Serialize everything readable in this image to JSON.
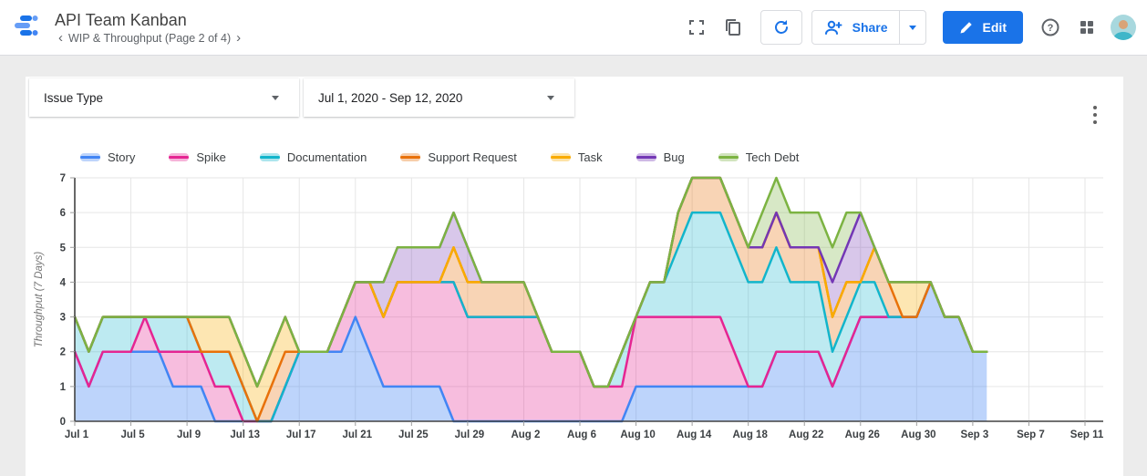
{
  "header": {
    "title": "API Team Kanban",
    "page_nav": "WIP & Throughput (Page 2 of 4)",
    "prev_page": "‹",
    "next_page": "›",
    "share_label": "Share",
    "edit_label": "Edit"
  },
  "filters": {
    "issue_type_label": "Issue Type",
    "date_range_value": "Jul 1, 2020 - Sep 12, 2020"
  },
  "colors": {
    "accent_blue": "#1a73e8",
    "icon_gray": "#5f6368",
    "axis_text": "#3c4043",
    "grid_line": "#e6e6e6",
    "axis_line": "#424242",
    "page_background": "#ececec",
    "canvas_background": "#ffffff"
  },
  "chart_data": {
    "type": "area",
    "stacked": true,
    "ylabel": "Throughput (7 Days)",
    "ylim": [
      0,
      7
    ],
    "y_ticks": [
      0,
      1,
      2,
      3,
      4,
      5,
      6,
      7
    ],
    "grid": true,
    "legend_position": "top",
    "n_points": 66,
    "x_start_label": "Jul 1",
    "x_end_data_label": "Sep 4",
    "x_axis_span_days": 73,
    "x_tick_days": [
      0,
      4,
      8,
      12,
      16,
      20,
      24,
      28,
      32,
      36,
      40,
      44,
      48,
      52,
      56,
      60,
      64,
      68,
      72
    ],
    "x_tick_labels": [
      "Jul 1",
      "Jul 5",
      "Jul 9",
      "Jul 13",
      "Jul 17",
      "Jul 21",
      "Jul 25",
      "Jul 29",
      "Aug 2",
      "Aug 6",
      "Aug 10",
      "Aug 14",
      "Aug 18",
      "Aug 22",
      "Aug 26",
      "Aug 30",
      "Sep 3",
      "Sep 7",
      "Sep 11"
    ],
    "series": [
      {
        "name": "Story",
        "color": "#4285f4",
        "fill_alpha": 0.35,
        "values": [
          2,
          1,
          2,
          2,
          2,
          2,
          2,
          1,
          1,
          1,
          0,
          0,
          0,
          0,
          0,
          1,
          2,
          2,
          2,
          2,
          3,
          2,
          1,
          1,
          1,
          1,
          1,
          0,
          0,
          0,
          0,
          0,
          0,
          0,
          0,
          0,
          0,
          0,
          0,
          0,
          1,
          1,
          1,
          1,
          1,
          1,
          1,
          1,
          1,
          1,
          2,
          2,
          2,
          2,
          1,
          2,
          3,
          3,
          3,
          3,
          3,
          4,
          3,
          3,
          2,
          2
        ]
      },
      {
        "name": "Spike",
        "color": "#e52592",
        "fill_alpha": 0.3,
        "values": [
          0,
          0,
          0,
          0,
          0,
          1,
          0,
          1,
          1,
          1,
          1,
          1,
          0,
          0,
          0,
          0,
          0,
          0,
          0,
          1,
          1,
          2,
          2,
          3,
          3,
          3,
          3,
          4,
          3,
          3,
          3,
          3,
          3,
          3,
          2,
          2,
          2,
          1,
          1,
          1,
          2,
          2,
          2,
          2,
          2,
          2,
          2,
          1,
          0,
          0,
          0,
          0,
          0,
          0,
          0,
          0,
          0,
          0,
          0,
          0,
          0,
          0,
          0,
          0,
          0,
          0
        ]
      },
      {
        "name": "Documentation",
        "color": "#12b5cb",
        "fill_alpha": 0.28,
        "values": [
          1,
          1,
          1,
          1,
          1,
          0,
          1,
          1,
          1,
          0,
          1,
          1,
          1,
          0,
          0,
          0,
          0,
          0,
          0,
          0,
          0,
          0,
          0,
          0,
          0,
          0,
          0,
          0,
          0,
          0,
          0,
          0,
          0,
          0,
          0,
          0,
          0,
          0,
          0,
          1,
          0,
          1,
          1,
          2,
          3,
          3,
          3,
          3,
          3,
          3,
          3,
          2,
          2,
          2,
          1,
          1,
          1,
          1,
          0,
          0,
          0,
          0,
          0,
          0,
          0,
          0
        ]
      },
      {
        "name": "Support Request",
        "color": "#e8710a",
        "fill_alpha": 0.3,
        "values": [
          0,
          0,
          0,
          0,
          0,
          0,
          0,
          0,
          0,
          0,
          0,
          0,
          0,
          0,
          1,
          1,
          0,
          0,
          0,
          0,
          0,
          0,
          0,
          0,
          0,
          0,
          0,
          1,
          1,
          1,
          1,
          1,
          1,
          0,
          0,
          0,
          0,
          0,
          0,
          0,
          0,
          0,
          0,
          1,
          1,
          1,
          1,
          1,
          1,
          1,
          1,
          1,
          1,
          1,
          1,
          1,
          0,
          1,
          1,
          0,
          0,
          0,
          0,
          0,
          0,
          0
        ]
      },
      {
        "name": "Task",
        "color": "#f9ab00",
        "fill_alpha": 0.3,
        "values": [
          0,
          0,
          0,
          0,
          0,
          0,
          0,
          0,
          0,
          1,
          1,
          1,
          1,
          1,
          1,
          1,
          0,
          0,
          0,
          0,
          0,
          0,
          0,
          0,
          0,
          0,
          0,
          0,
          0,
          0,
          0,
          0,
          0,
          0,
          0,
          0,
          0,
          0,
          0,
          0,
          0,
          0,
          0,
          0,
          0,
          0,
          0,
          0,
          0,
          0,
          0,
          0,
          0,
          0,
          0,
          0,
          0,
          0,
          0,
          1,
          1,
          0,
          0,
          0,
          0,
          0
        ]
      },
      {
        "name": "Bug",
        "color": "#7337b5",
        "fill_alpha": 0.28,
        "values": [
          0,
          0,
          0,
          0,
          0,
          0,
          0,
          0,
          0,
          0,
          0,
          0,
          0,
          0,
          0,
          0,
          0,
          0,
          0,
          0,
          0,
          0,
          1,
          1,
          1,
          1,
          1,
          1,
          1,
          0,
          0,
          0,
          0,
          0,
          0,
          0,
          0,
          0,
          0,
          0,
          0,
          0,
          0,
          0,
          0,
          0,
          0,
          0,
          0,
          0,
          0,
          0,
          0,
          0,
          1,
          1,
          2,
          0,
          0,
          0,
          0,
          0,
          0,
          0,
          0,
          0
        ]
      },
      {
        "name": "Tech Debt",
        "color": "#7cb342",
        "fill_alpha": 0.3,
        "values": [
          0,
          0,
          0,
          0,
          0,
          0,
          0,
          0,
          0,
          0,
          0,
          0,
          0,
          0,
          0,
          0,
          0,
          0,
          0,
          0,
          0,
          0,
          0,
          0,
          0,
          0,
          0,
          0,
          0,
          0,
          0,
          0,
          0,
          0,
          0,
          0,
          0,
          0,
          0,
          0,
          0,
          0,
          0,
          0,
          0,
          0,
          0,
          0,
          0,
          1,
          1,
          1,
          1,
          1,
          1,
          1,
          0,
          0,
          0,
          0,
          0,
          0,
          0,
          0,
          0,
          0
        ]
      }
    ]
  }
}
